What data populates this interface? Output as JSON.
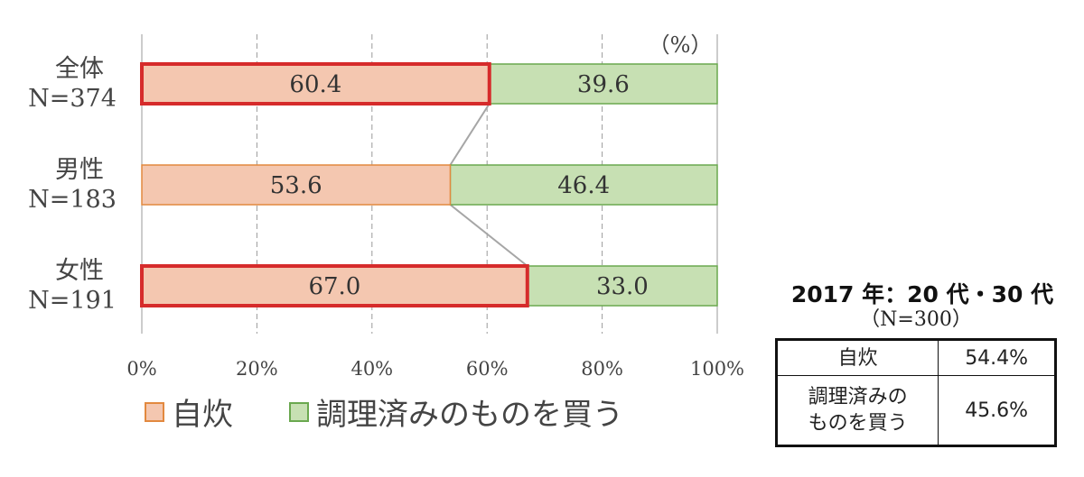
{
  "chart_data": {
    "type": "bar",
    "stacked": true,
    "orientation": "horizontal",
    "unit_label": "（%）",
    "categories": [
      {
        "name": "全体",
        "n": "N=374",
        "highlight": true
      },
      {
        "name": "男性",
        "n": "N=183",
        "highlight": false
      },
      {
        "name": "女性",
        "n": "N=191",
        "highlight": true
      }
    ],
    "series": [
      {
        "name": "自炊",
        "values": [
          60.4,
          53.6,
          67.0
        ],
        "labels": [
          "60.4",
          "53.6",
          "67.0"
        ],
        "color": "#f4c7b0",
        "edge": "#e2893f"
      },
      {
        "name": "調理済みのものを買う",
        "values": [
          39.6,
          46.4,
          33.0
        ],
        "labels": [
          "39.6",
          "46.4",
          "33.0"
        ],
        "color": "#c7e0b3",
        "edge": "#6aa84f"
      }
    ],
    "xlim": [
      0,
      100
    ],
    "xticks": [
      "0%",
      "20%",
      "40%",
      "60%",
      "80%",
      "100%"
    ],
    "highlight_color": "#d62b2b",
    "grid": true,
    "legend_position": "bottom"
  },
  "side_table": {
    "title": "2017 年：20 代・30 代",
    "subtitle": "（N=300）",
    "rows": [
      {
        "label_lines": [
          "自炊"
        ],
        "value": "54.4%"
      },
      {
        "label_lines": [
          "調理済みの",
          "ものを買う"
        ],
        "value": "45.6%"
      }
    ]
  }
}
